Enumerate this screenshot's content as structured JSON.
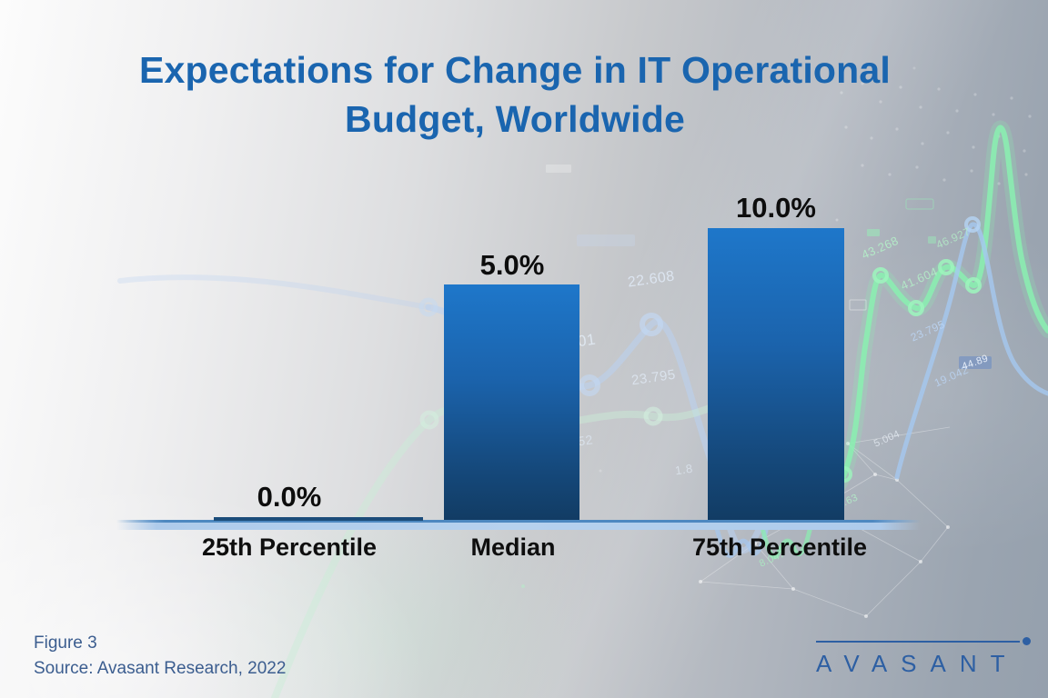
{
  "title": {
    "line1": "Expectations for Change in IT Operational",
    "line2": "Budget, Worldwide"
  },
  "chart_data": {
    "type": "bar",
    "title": "Expectations for Change in IT Operational Budget, Worldwide",
    "categories": [
      "25th Percentile",
      "Median",
      "75th Percentile"
    ],
    "values": [
      0.0,
      5.0,
      10.0
    ],
    "value_labels": [
      "0.0%",
      "5.0%",
      "10.0%"
    ],
    "unit": "%",
    "xlabel": "",
    "ylabel": "",
    "ylim": [
      0,
      12
    ],
    "grid": false,
    "legend": false,
    "bar_color_top": "#1d74c6",
    "bar_color_bottom": "#123c64"
  },
  "footer": {
    "figure_label": "Figure 3",
    "source": "Source: Avasant Research, 2022"
  },
  "logo": {
    "text": "AVASANT"
  },
  "background": {
    "numbers": [
      "22.608",
      ".001",
      "23.795",
      "852",
      "1.8",
      "43.268",
      "41.604",
      "46.927",
      "23.795",
      "19.042",
      "5.004",
      "18.63",
      "8.047",
      "44.89"
    ],
    "accent_green": "#8af0b0",
    "accent_blue": "#a5c8f0"
  },
  "colors": {
    "title_text": "#1a65af",
    "axis_band": "#a9c9ea",
    "label_text": "#0d0d0d",
    "footer_text": "#3b5d8f",
    "logo": "#2d5fa3"
  }
}
